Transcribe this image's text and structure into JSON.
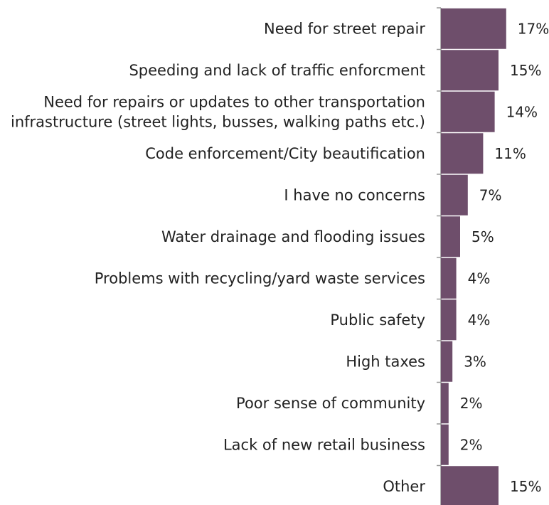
{
  "chart_data": {
    "type": "bar",
    "orientation": "horizontal",
    "categories": [
      [
        "Need for street repair"
      ],
      [
        "Speeding and lack of traffic enforcment"
      ],
      [
        "Need for repairs or updates to other transportation",
        "infrastructure (street lights, busses, walking paths etc.)"
      ],
      [
        "Code enforcement/City beautification"
      ],
      [
        "I have no concerns"
      ],
      [
        "Water drainage and flooding issues"
      ],
      [
        "Problems with recycling/yard waste services"
      ],
      [
        "Public safety"
      ],
      [
        "High taxes"
      ],
      [
        "Poor sense of community"
      ],
      [
        "Lack of new retail business"
      ],
      [
        "Other"
      ]
    ],
    "values": [
      17,
      15,
      14,
      11,
      7,
      5,
      4,
      4,
      3,
      2,
      2,
      15
    ],
    "value_labels": [
      "17%",
      "15%",
      "14%",
      "11%",
      "7%",
      "5%",
      "4%",
      "4%",
      "3%",
      "2%",
      "2%",
      "15%"
    ],
    "unit": "%",
    "bar_color": "#6e4e6b",
    "axis_color": "#999999",
    "grid": false,
    "legend": "none"
  }
}
